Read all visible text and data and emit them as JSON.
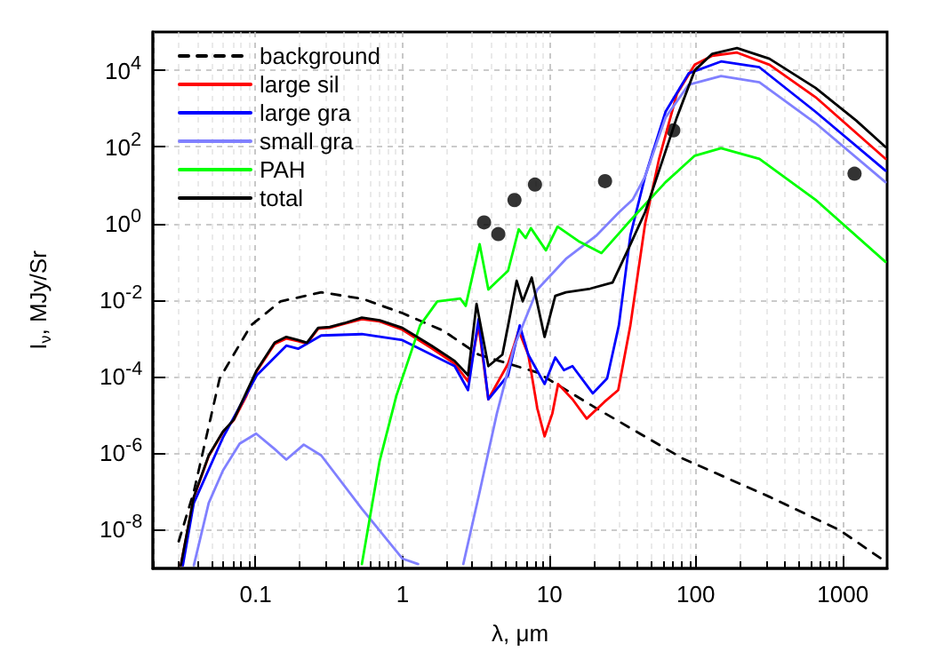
{
  "chart_data": {
    "type": "line",
    "xlabel": "λ, μm",
    "ylabel": "I$_{ν}$, MJy/Sr",
    "log": "xy",
    "grid": true,
    "legend": "top left",
    "marker": "none",
    "xlim": [
      0.02,
      2000
    ],
    "xticks": [
      0.1,
      1,
      10,
      100,
      1000
    ],
    "ylim": [
      1e-09,
      100000.0
    ],
    "yticks": [
      {
        "value": 1e-08,
        "label": "10$^{-8}$"
      },
      {
        "value": 1e-06,
        "label": "10$^{-6}$"
      },
      {
        "value": 0.0001,
        "label": "10$^{-4}$"
      },
      {
        "value": 0.01,
        "label": "10$^{-2}$"
      },
      {
        "value": 1,
        "label": "10$^{0}$"
      },
      {
        "value": 100,
        "label": "10$^{2}$"
      },
      {
        "value": 10000,
        "label": "10$^{4}$"
      }
    ],
    "series": [
      {
        "name": "background",
        "color": "#000000",
        "line_style": "dashed",
        "x": [
          0.03,
          0.038,
          0.057,
          0.093,
          0.148,
          0.28,
          0.53,
          1.0,
          1.9,
          3.3,
          8.3,
          21,
          81,
          316,
          950,
          1950
        ],
        "values": [
          5.1e-09,
          1e-07,
          9.1e-05,
          0.0022,
          0.0093,
          0.016,
          0.011,
          0.0046,
          0.0016,
          0.00038,
          0.00013,
          1.5e-05,
          7.4e-07,
          7.4e-08,
          1e-08,
          1.5e-09
        ]
      },
      {
        "name": "large sil",
        "color": "#ff0000",
        "x": [
          0.031,
          0.038,
          0.048,
          0.06,
          0.071,
          0.086,
          0.102,
          0.135,
          0.162,
          0.195,
          0.224,
          0.267,
          0.32,
          0.4,
          0.53,
          0.7,
          1.0,
          1.58,
          2.27,
          2.8,
          3.3,
          3.85,
          5.25,
          6.2,
          7.2,
          8.3,
          9.3,
          10.5,
          11.5,
          14.4,
          18,
          23.7,
          29.5,
          35.7,
          45,
          56,
          74,
          98,
          129,
          190,
          316,
          650,
          1950
        ],
        "values": [
          1.2e-09,
          7e-08,
          8.5e-07,
          3.6e-06,
          7.4e-06,
          3e-05,
          0.00014,
          0.00072,
          0.001,
          0.00085,
          0.00074,
          0.0018,
          0.0019,
          0.0024,
          0.0032,
          0.0028,
          0.0017,
          0.00056,
          0.00022,
          7.6e-05,
          0.0022,
          2.6e-05,
          0.00022,
          0.0016,
          0.00038,
          1.5e-05,
          2.8e-06,
          1.1e-05,
          6.5e-05,
          2.6e-05,
          8.1e-06,
          2.2e-05,
          4.5e-05,
          0.0022,
          1.0,
          49,
          2400,
          14000,
          24000,
          29000,
          14000,
          2000,
          49
        ]
      },
      {
        "name": "large gra",
        "color": "#0000ff",
        "x": [
          0.032,
          0.038,
          0.06,
          0.102,
          0.162,
          0.195,
          0.28,
          0.53,
          1.0,
          2.27,
          2.8,
          3.3,
          3.85,
          5.25,
          6.3,
          7.2,
          9.3,
          11,
          12.6,
          14.4,
          19.8,
          24.8,
          29.8,
          35.7,
          45,
          62,
          89,
          148,
          270,
          650,
          1950
        ],
        "values": [
          1.2e-09,
          5.1e-08,
          2.6e-06,
          0.00011,
          0.00065,
          0.00054,
          0.0012,
          0.0013,
          0.00091,
          0.00019,
          4.5e-05,
          0.0032,
          2.6e-05,
          0.00011,
          0.0022,
          0.00038,
          6.5e-05,
          0.00032,
          0.00015,
          0.00019,
          3.7e-05,
          9.1e-05,
          0.0022,
          0.49,
          17,
          830,
          8300,
          17000,
          12000,
          830,
          24
        ]
      },
      {
        "name": "small gra",
        "color": "#8080ff",
        "x": [
          0.038,
          0.048,
          0.06,
          0.078,
          0.101,
          0.135,
          0.162,
          0.213,
          0.28,
          0.53,
          1.0,
          1.28,
          1.8,
          2.6,
          3.36,
          4.4,
          5.8,
          8.3,
          13,
          21,
          30,
          37,
          45,
          62,
          89,
          148,
          270,
          650,
          1950
        ],
        "values": [
          1.2e-09,
          5.1e-08,
          3.6e-07,
          1.8e-06,
          3.3e-06,
          1.3e-06,
          6.9e-07,
          1.7e-06,
          8.9e-07,
          3.6e-08,
          1.8e-09,
          1.3e-09,
          null,
          1.3e-09,
          1e-07,
          1.1e-05,
          0.00065,
          0.019,
          0.12,
          0.49,
          2.0,
          4.2,
          17,
          590,
          4200,
          7100,
          4900,
          420,
          12
        ]
      },
      {
        "name": "PAH",
        "color": "#00ff00",
        "x": [
          0.53,
          0.7,
          0.91,
          1.32,
          1.73,
          2.48,
          2.7,
          3.36,
          3.85,
          5.25,
          6.2,
          6.9,
          7.5,
          9.5,
          11.4,
          15.8,
          22.7,
          35.7,
          62,
          98,
          148,
          270,
          650,
          1950
        ],
        "values": [
          1.3e-09,
          6.3e-07,
          3.2e-05,
          0.0022,
          0.0093,
          0.011,
          0.0071,
          0.29,
          0.019,
          0.059,
          0.71,
          0.42,
          0.76,
          0.2,
          0.83,
          0.35,
          0.17,
          1.2,
          12,
          59,
          93,
          49,
          4.2,
          0.1
        ]
      },
      {
        "name": "total",
        "color": "#000000",
        "x": [
          0.031,
          0.038,
          0.048,
          0.06,
          0.071,
          0.086,
          0.102,
          0.135,
          0.162,
          0.195,
          0.224,
          0.267,
          0.32,
          0.4,
          0.53,
          0.7,
          1.0,
          1.58,
          2.27,
          2.8,
          3.2,
          3.85,
          4.8,
          5.25,
          6.0,
          6.6,
          7.6,
          9.3,
          11,
          13,
          19,
          27,
          35,
          45,
          56,
          74,
          98,
          129,
          190,
          316,
          650,
          1230,
          1950
        ],
        "values": [
          1.2e-09,
          7.4e-08,
          8.9e-07,
          3.7e-06,
          7.6e-06,
          3.7e-05,
          0.00015,
          0.00078,
          0.0011,
          0.00091,
          0.00078,
          0.0019,
          0.002,
          0.0025,
          0.0035,
          0.003,
          0.0019,
          0.00065,
          0.00026,
          0.00011,
          0.008,
          0.00019,
          0.00038,
          0.0022,
          0.032,
          0.0093,
          0.039,
          0.0011,
          0.013,
          0.016,
          0.02,
          0.029,
          0.24,
          2.0,
          24,
          590,
          10000,
          27000,
          38000,
          20000,
          3500,
          490,
          100
        ]
      },
      {
        "type": "scatter",
        "marker": "circle",
        "color": "#000000",
        "x": [
          3.6,
          4.5,
          5.8,
          8,
          24,
          70,
          1200
        ],
        "values": [
          1.07,
          0.53,
          4.1,
          10.4,
          12.8,
          270,
          20
        ]
      }
    ]
  }
}
